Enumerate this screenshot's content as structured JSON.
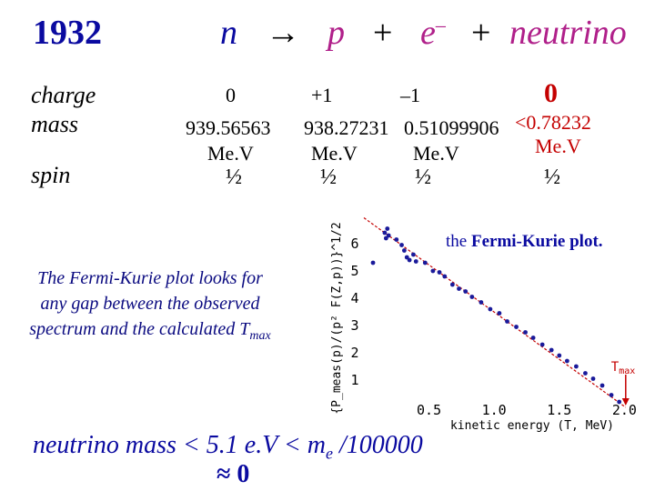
{
  "header": {
    "year": "1932",
    "neutron": "n",
    "arrow": "→",
    "proton": "p",
    "plus1": "+",
    "electron": "e",
    "electron_sup": "–",
    "plus2": "+",
    "neutrino": "neutrino"
  },
  "rows": {
    "charge_label": "charge",
    "mass_label": "mass",
    "spin_label": "spin",
    "mev": "Me.V"
  },
  "particles": [
    {
      "charge": "0",
      "mass": "939.56563",
      "spin": "½"
    },
    {
      "charge": "+1",
      "mass": "938.27231",
      "spin": "½"
    },
    {
      "charge": "–1",
      "mass": "0.51099906",
      "spin": "½"
    },
    {
      "charge": "0",
      "mass": "<0.78232",
      "spin": "½"
    }
  ],
  "note": "The Fermi-Kurie plot looks for any gap between the observed spectrum and the calculated T",
  "note_sub": "max",
  "plot_title_prefix": "the ",
  "plot_title_bold": "Fermi-Kurie plot.",
  "tmax_label": "T",
  "tmax_sub": "max",
  "conclusion": {
    "line1_a": "neutrino mass < 5.1 e.V < m",
    "line1_sub": "e",
    "line1_b": " /100000",
    "line2": "≈ 0"
  },
  "colors": {
    "navy": "#0a0aa0",
    "magenta": "#b0208a",
    "red": "#c40000",
    "points": "#1a1a9a"
  },
  "chart_data": {
    "type": "scatter",
    "xlabel": "kinetic energy (T, MeV)",
    "ylabel": "{P_meas(p)/(p² F(Z,p))}^1/2",
    "xlim": [
      0,
      2.2
    ],
    "ylim": [
      0,
      7
    ],
    "x_ticks": [
      "0.5",
      "1.0",
      "1.5",
      "2.0"
    ],
    "y_ticks": [
      "1",
      "2",
      "3",
      "4",
      "5",
      "6"
    ],
    "fit_line": {
      "x": [
        0,
        2.01
      ],
      "y": [
        6.95,
        0
      ]
    },
    "points": [
      {
        "x": 0.07,
        "y": 5.3
      },
      {
        "x": 0.16,
        "y": 6.4
      },
      {
        "x": 0.17,
        "y": 6.2
      },
      {
        "x": 0.18,
        "y": 6.55
      },
      {
        "x": 0.19,
        "y": 6.3
      },
      {
        "x": 0.25,
        "y": 6.15
      },
      {
        "x": 0.29,
        "y": 5.95
      },
      {
        "x": 0.31,
        "y": 5.75
      },
      {
        "x": 0.33,
        "y": 5.5
      },
      {
        "x": 0.35,
        "y": 5.4
      },
      {
        "x": 0.38,
        "y": 5.6
      },
      {
        "x": 0.4,
        "y": 5.35
      },
      {
        "x": 0.47,
        "y": 5.3
      },
      {
        "x": 0.53,
        "y": 5.0
      },
      {
        "x": 0.58,
        "y": 4.95
      },
      {
        "x": 0.62,
        "y": 4.8
      },
      {
        "x": 0.68,
        "y": 4.5
      },
      {
        "x": 0.73,
        "y": 4.35
      },
      {
        "x": 0.78,
        "y": 4.25
      },
      {
        "x": 0.83,
        "y": 4.05
      },
      {
        "x": 0.9,
        "y": 3.85
      },
      {
        "x": 0.97,
        "y": 3.6
      },
      {
        "x": 1.04,
        "y": 3.45
      },
      {
        "x": 1.1,
        "y": 3.15
      },
      {
        "x": 1.17,
        "y": 2.95
      },
      {
        "x": 1.24,
        "y": 2.75
      },
      {
        "x": 1.3,
        "y": 2.55
      },
      {
        "x": 1.37,
        "y": 2.3
      },
      {
        "x": 1.44,
        "y": 2.1
      },
      {
        "x": 1.5,
        "y": 1.9
      },
      {
        "x": 1.56,
        "y": 1.7
      },
      {
        "x": 1.63,
        "y": 1.5
      },
      {
        "x": 1.7,
        "y": 1.25
      },
      {
        "x": 1.76,
        "y": 1.05
      },
      {
        "x": 1.83,
        "y": 0.8
      },
      {
        "x": 1.9,
        "y": 0.45
      },
      {
        "x": 1.96,
        "y": 0.2
      }
    ]
  }
}
